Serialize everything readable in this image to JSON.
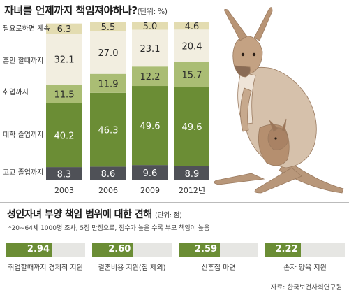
{
  "chart_title": "자녀를 언제까지 책임져야하나?",
  "chart_unit": "(단위: %)",
  "chart_data": [
    {
      "type": "bar",
      "stacked": true,
      "title": "자녀를 언제까지 책임져야하나?",
      "unit": "(단위: %)",
      "categories": [
        "2003",
        "2006",
        "2009",
        "2012년"
      ],
      "series": [
        {
          "name": "고교 졸업까지",
          "values": [
            8.3,
            8.6,
            9.6,
            8.9
          ],
          "color": "#4f5157"
        },
        {
          "name": "대학 졸업까지",
          "values": [
            40.2,
            46.3,
            49.6,
            49.6
          ],
          "color": "#6b8d35"
        },
        {
          "name": "취업까지",
          "values": [
            11.5,
            11.9,
            12.2,
            15.7
          ],
          "color": "#aabd74"
        },
        {
          "name": "혼인 할때까지",
          "values": [
            32.1,
            27.0,
            23.1,
            20.4
          ],
          "color": "#f2eee0"
        },
        {
          "name": "필요로하면 계속",
          "values": [
            6.3,
            5.5,
            5.0,
            4.6
          ],
          "color": "#e3dcb1"
        }
      ],
      "ylim": [
        0,
        100
      ]
    },
    {
      "type": "bar",
      "orientation": "horizontal",
      "title": "성인자녀 부양 책임 범위에 대한 견해",
      "unit": "(단위: 점)",
      "note": "*20~64세 1000명 조사, 5점 만점으로, 점수가 높을 수록 부모 책임이 높음",
      "categories": [
        "취업할때까지 경제적 지원",
        "결혼비용 지원(집 제외)",
        "신혼집 마련",
        "손자 양육 지원"
      ],
      "values": [
        2.94,
        2.6,
        2.59,
        2.22
      ],
      "value_labels": [
        "2.94",
        "2.60",
        "2.59",
        "2.22"
      ],
      "xlim": [
        0,
        5
      ],
      "color": "#6b8d35"
    }
  ],
  "section2_title": "성인자녀 부양 책임 범위에 대한 견해",
  "section2_unit": "(단위: 점)",
  "section2_note": "*20~64세 1000명 조사, 5점 만점으로, 점수가 높을 수록 부모 책임이 높음",
  "source": "자료: 한국보건사회연구원"
}
